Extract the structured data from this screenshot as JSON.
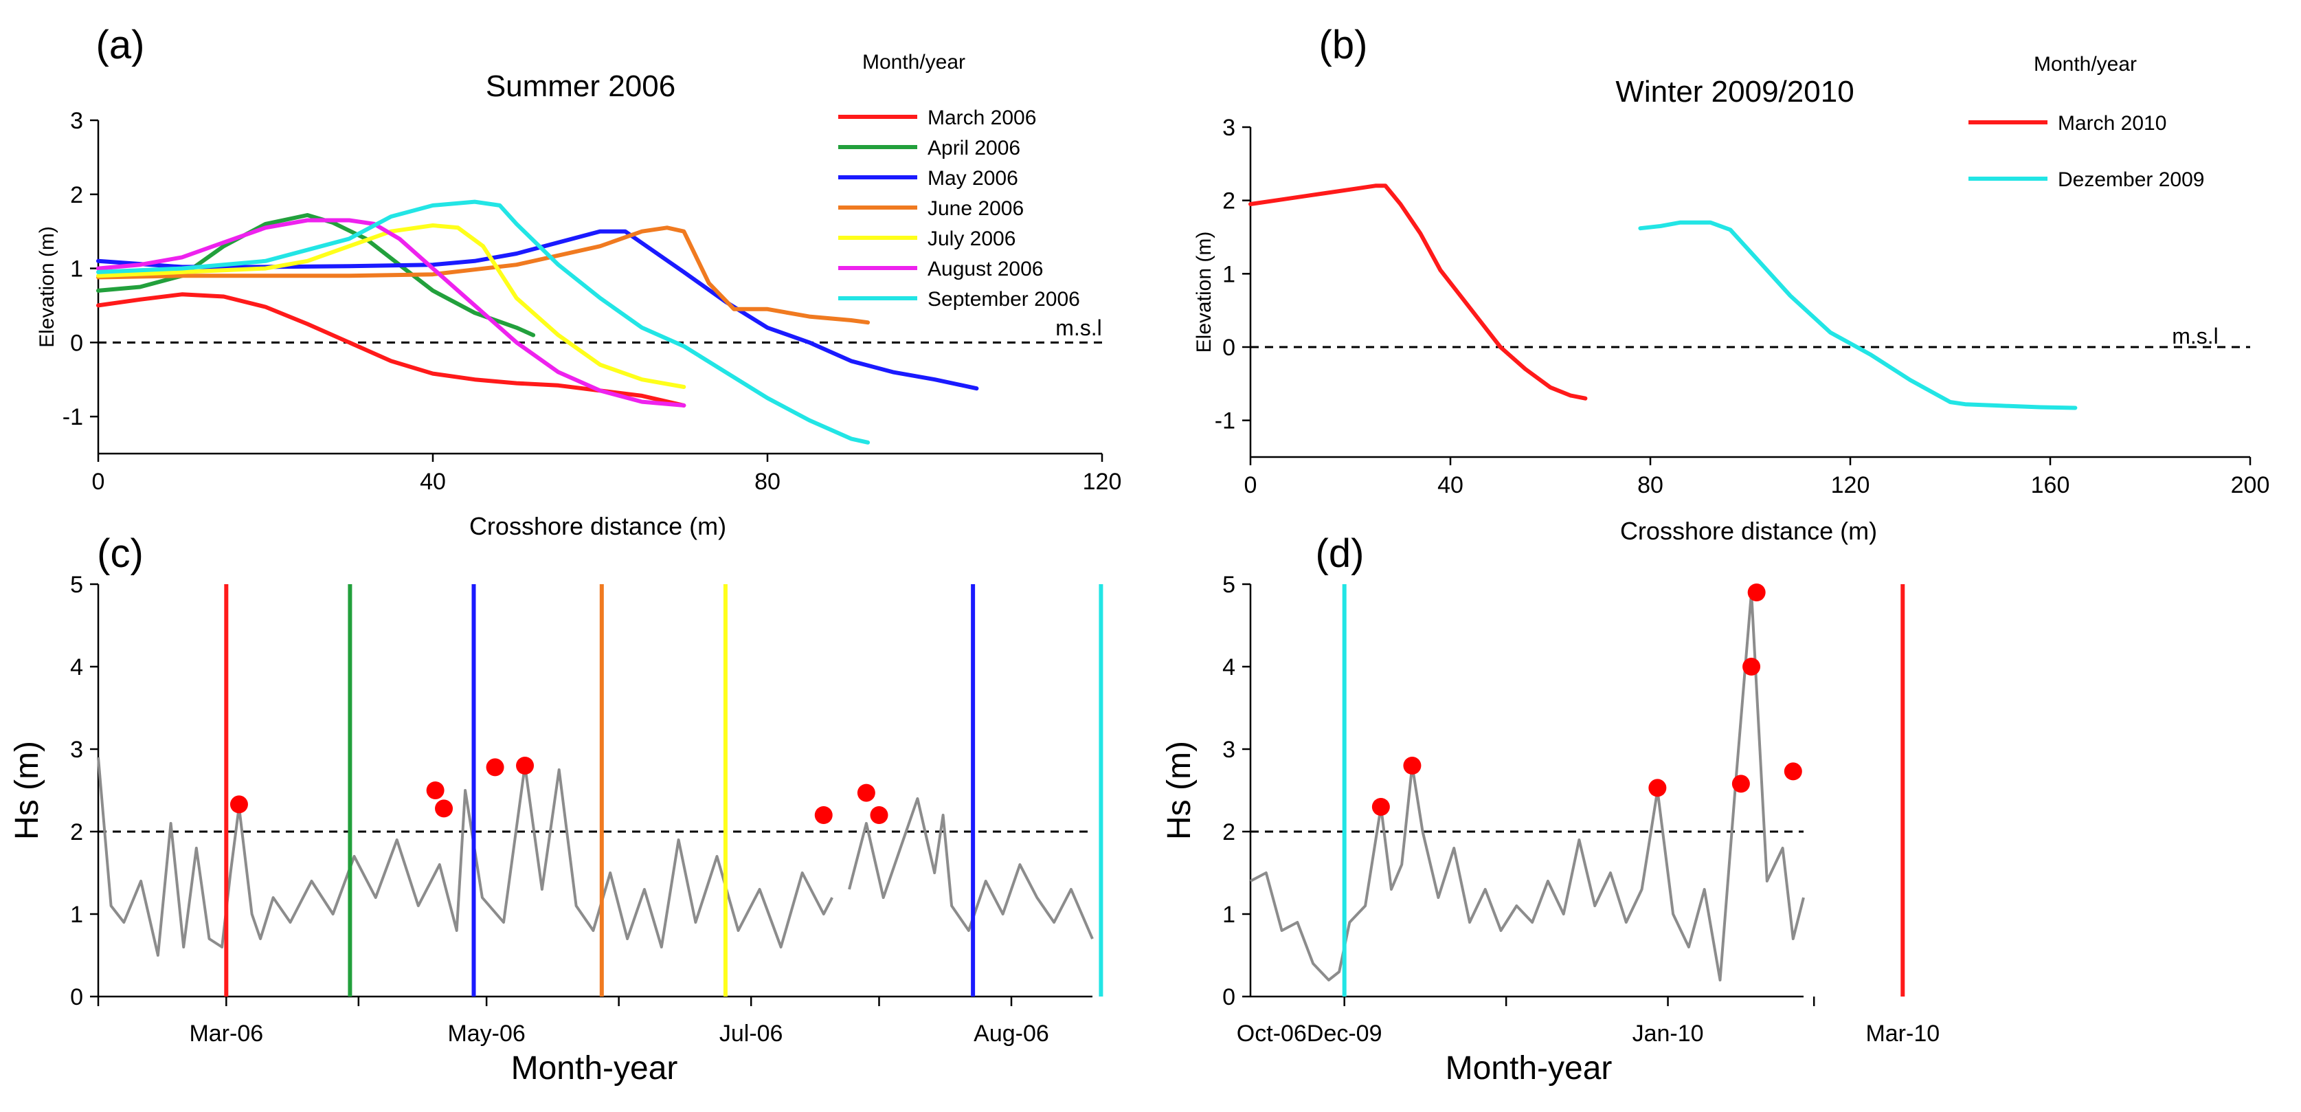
{
  "chart_data": [
    {
      "panel": "(a)",
      "type": "line",
      "title": "Summer 2006",
      "xlabel": "Crosshore distance (m)",
      "ylabel": "Elevation (m)",
      "xlim": [
        0,
        120
      ],
      "ylim": [
        -1.5,
        3
      ],
      "xticks": [
        0,
        40,
        80,
        120
      ],
      "yticks": [
        -1,
        0,
        1,
        2,
        3
      ],
      "legend_title": "Month/year",
      "reference_label": "m.s.l",
      "reference_y": 0,
      "series": [
        {
          "name": "March 2006",
          "color": "#ff1a1a",
          "x": [
            0,
            5,
            10,
            15,
            20,
            25,
            30,
            35,
            40,
            45,
            50,
            55,
            60,
            65,
            70
          ],
          "y": [
            0.5,
            0.58,
            0.65,
            0.62,
            0.48,
            0.25,
            0.0,
            -0.25,
            -0.42,
            -0.5,
            -0.55,
            -0.58,
            -0.65,
            -0.72,
            -0.85
          ]
        },
        {
          "name": "April 2006",
          "color": "#22a03c",
          "x": [
            0,
            5,
            10,
            15,
            20,
            25,
            28,
            32,
            36,
            40,
            45,
            50,
            52
          ],
          "y": [
            0.7,
            0.75,
            0.9,
            1.3,
            1.6,
            1.72,
            1.62,
            1.4,
            1.05,
            0.7,
            0.4,
            0.2,
            0.1
          ]
        },
        {
          "name": "May 2006",
          "color": "#1a1aff",
          "x": [
            0,
            10,
            20,
            30,
            40,
            45,
            50,
            55,
            60,
            63,
            70,
            75,
            80,
            85,
            90,
            95,
            100,
            105
          ],
          "y": [
            1.1,
            1.02,
            1.02,
            1.03,
            1.05,
            1.1,
            1.2,
            1.35,
            1.5,
            1.5,
            0.95,
            0.55,
            0.2,
            0.0,
            -0.25,
            -0.4,
            -0.5,
            -0.62
          ]
        },
        {
          "name": "June 2006",
          "color": "#f07a20",
          "x": [
            0,
            10,
            20,
            30,
            40,
            50,
            60,
            65,
            68,
            70,
            73,
            76,
            80,
            85,
            90,
            92
          ],
          "y": [
            0.88,
            0.9,
            0.9,
            0.9,
            0.92,
            1.05,
            1.3,
            1.5,
            1.55,
            1.5,
            0.8,
            0.45,
            0.45,
            0.35,
            0.3,
            0.27
          ]
        },
        {
          "name": "July 2006",
          "color": "#ffff1a",
          "x": [
            0,
            10,
            20,
            25,
            30,
            35,
            40,
            43,
            46,
            50,
            55,
            60,
            65,
            70
          ],
          "y": [
            0.9,
            0.95,
            1.0,
            1.1,
            1.3,
            1.5,
            1.58,
            1.55,
            1.3,
            0.6,
            0.1,
            -0.3,
            -0.5,
            -0.6
          ]
        },
        {
          "name": "August 2006",
          "color": "#ee22ee",
          "x": [
            0,
            5,
            10,
            15,
            20,
            25,
            30,
            33,
            36,
            40,
            45,
            50,
            55,
            60,
            65,
            70
          ],
          "y": [
            1.0,
            1.05,
            1.15,
            1.35,
            1.55,
            1.65,
            1.65,
            1.6,
            1.4,
            1.0,
            0.5,
            0.0,
            -0.4,
            -0.65,
            -0.8,
            -0.85
          ]
        },
        {
          "name": "September 2006",
          "color": "#22e5e5",
          "x": [
            0,
            10,
            20,
            30,
            35,
            40,
            45,
            48,
            50,
            55,
            60,
            65,
            70,
            75,
            80,
            85,
            90,
            92
          ],
          "y": [
            0.95,
            1.0,
            1.1,
            1.4,
            1.7,
            1.85,
            1.9,
            1.85,
            1.6,
            1.05,
            0.6,
            0.2,
            -0.05,
            -0.4,
            -0.75,
            -1.05,
            -1.3,
            -1.35
          ]
        }
      ]
    },
    {
      "panel": "(b)",
      "type": "line",
      "title": "Winter 2009/2010",
      "xlabel": "Crosshore distance (m)",
      "ylabel": "Elevation (m)",
      "xlim": [
        0,
        200
      ],
      "ylim": [
        -1.5,
        3
      ],
      "xticks": [
        0,
        40,
        80,
        120,
        160,
        200
      ],
      "yticks": [
        -1,
        0,
        1,
        2,
        3
      ],
      "legend_title": "Month/year",
      "reference_label": "m.s.l",
      "reference_y": 0,
      "series": [
        {
          "name": "March 2010",
          "color": "#ff1a1a",
          "x": [
            0,
            5,
            10,
            15,
            20,
            25,
            27,
            30,
            34,
            38,
            42,
            46,
            50,
            55,
            60,
            64,
            67
          ],
          "y": [
            1.95,
            2.0,
            2.05,
            2.1,
            2.15,
            2.2,
            2.2,
            1.95,
            1.55,
            1.05,
            0.7,
            0.35,
            0.0,
            -0.3,
            -0.55,
            -0.66,
            -0.7
          ]
        },
        {
          "name": "Dezember 2009",
          "color": "#22e5e5",
          "x": [
            78,
            82,
            86,
            88,
            92,
            96,
            100,
            108,
            116,
            124,
            132,
            140,
            143,
            150,
            158,
            165
          ],
          "y": [
            1.62,
            1.65,
            1.7,
            1.7,
            1.7,
            1.6,
            1.3,
            0.7,
            0.2,
            -0.1,
            -0.45,
            -0.75,
            -0.78,
            -0.8,
            -0.82,
            -0.83
          ]
        }
      ]
    },
    {
      "panel": "(c)",
      "type": "line",
      "xlabel": "Month-year",
      "ylabel": "Hs (m)",
      "xlim": [
        0,
        233
      ],
      "ylim": [
        0,
        5
      ],
      "yticks": [
        0,
        1,
        2,
        3,
        4,
        5
      ],
      "x_tick_days": [
        0,
        30,
        61,
        91,
        122,
        153,
        183,
        214
      ],
      "x_tick_labels": [
        {
          "day": 30,
          "label": "Mar-06"
        },
        {
          "day": 91,
          "label": "May-06"
        },
        {
          "day": 153,
          "label": "Jul-06"
        },
        {
          "day": 214,
          "label": "Aug-06"
        },
        {
          "day": 275,
          "label": "Oct-06"
        }
      ],
      "threshold": 2,
      "hs_series": [
        {
          "segment": 1,
          "x": [
            0,
            3,
            6,
            10,
            14,
            17,
            20,
            23,
            26,
            29,
            31,
            33,
            36,
            38,
            41,
            45,
            50,
            55,
            60,
            65,
            70,
            75,
            80,
            84,
            86,
            90,
            95,
            100,
            104,
            108,
            112,
            116,
            120,
            124,
            128,
            132,
            136,
            140,
            145,
            150,
            155,
            160,
            165,
            170,
            172
          ],
          "y": [
            2.9,
            1.1,
            0.9,
            1.4,
            0.5,
            2.1,
            0.6,
            1.8,
            0.7,
            0.6,
            1.5,
            2.3,
            1.0,
            0.7,
            1.2,
            0.9,
            1.4,
            1.0,
            1.7,
            1.2,
            1.9,
            1.1,
            1.6,
            0.8,
            2.5,
            1.2,
            0.9,
            2.8,
            1.3,
            2.75,
            1.1,
            0.8,
            1.5,
            0.7,
            1.3,
            0.6,
            1.9,
            0.9,
            1.7,
            0.8,
            1.3,
            0.6,
            1.5,
            1.0,
            1.2
          ]
        },
        {
          "segment": 2,
          "x": [
            176,
            180,
            184,
            188,
            192,
            196,
            198,
            200,
            204,
            208,
            212,
            216,
            220,
            224,
            228,
            233
          ],
          "y": [
            1.3,
            2.1,
            1.2,
            1.8,
            2.4,
            1.5,
            2.2,
            1.1,
            0.8,
            1.4,
            1.0,
            1.6,
            1.2,
            0.9,
            1.3,
            0.7
          ]
        }
      ],
      "events": [
        {
          "day": 30,
          "color": "#ff1a1a"
        },
        {
          "day": 59,
          "color": "#22a03c"
        },
        {
          "day": 88,
          "color": "#1a1aff"
        },
        {
          "day": 118,
          "color": "#f07a20"
        },
        {
          "day": 147,
          "color": "#ffff1a"
        },
        {
          "day": 205,
          "color": "#1a1aff"
        },
        {
          "day": 235,
          "color": "#22e5e5"
        }
      ],
      "peaks": [
        {
          "day": 33,
          "hs": 2.33
        },
        {
          "day": 79,
          "hs": 2.5
        },
        {
          "day": 81,
          "hs": 2.28
        },
        {
          "day": 93,
          "hs": 2.78
        },
        {
          "day": 100,
          "hs": 2.8
        },
        {
          "day": 170,
          "hs": 2.2
        },
        {
          "day": 180,
          "hs": 2.47
        },
        {
          "day": 183,
          "hs": 2.2
        }
      ]
    },
    {
      "panel": "(d)",
      "type": "line",
      "xlabel": "Month-year",
      "ylabel": "Hs (m)",
      "xlim": [
        0,
        106
      ],
      "ylim": [
        0,
        5
      ],
      "yticks": [
        0,
        1,
        2,
        3,
        4,
        5
      ],
      "x_tick_days": [
        18,
        49,
        80,
        108
      ],
      "x_tick_labels": [
        {
          "day": 18,
          "label": "Dec-09"
        },
        {
          "day": 80,
          "label": "Jan-10"
        },
        {
          "day": 125,
          "label": "Mar-10"
        }
      ],
      "threshold": 2,
      "hs_series": [
        {
          "segment": 1,
          "x": [
            0,
            3,
            6,
            9,
            12,
            15,
            17,
            19,
            22,
            25,
            27,
            29,
            31,
            33,
            36,
            39,
            42,
            45,
            48,
            51,
            54,
            57,
            60,
            63,
            66,
            69,
            72,
            75,
            78,
            81,
            84,
            87,
            90,
            93,
            96,
            99,
            102,
            104,
            106
          ],
          "y": [
            1.4,
            1.5,
            0.8,
            0.9,
            0.4,
            0.2,
            0.3,
            0.9,
            1.1,
            2.3,
            1.3,
            1.6,
            2.8,
            2.0,
            1.2,
            1.8,
            0.9,
            1.3,
            0.8,
            1.1,
            0.9,
            1.4,
            1.0,
            1.9,
            1.1,
            1.5,
            0.9,
            1.3,
            2.5,
            1.0,
            0.6,
            1.3,
            0.2,
            2.6,
            4.9,
            1.4,
            1.8,
            0.7,
            1.2
          ]
        }
      ],
      "events": [
        {
          "day": 18,
          "color": "#22e5e5"
        },
        {
          "day": 125,
          "color": "#ff1a1a"
        }
      ],
      "peaks": [
        {
          "day": 25,
          "hs": 2.3
        },
        {
          "day": 31,
          "hs": 2.8
        },
        {
          "day": 78,
          "hs": 2.53
        },
        {
          "day": 94,
          "hs": 2.58
        },
        {
          "day": 96,
          "hs": 4.0
        },
        {
          "day": 97,
          "hs": 4.9
        },
        {
          "day": 104,
          "hs": 2.73
        }
      ]
    }
  ]
}
